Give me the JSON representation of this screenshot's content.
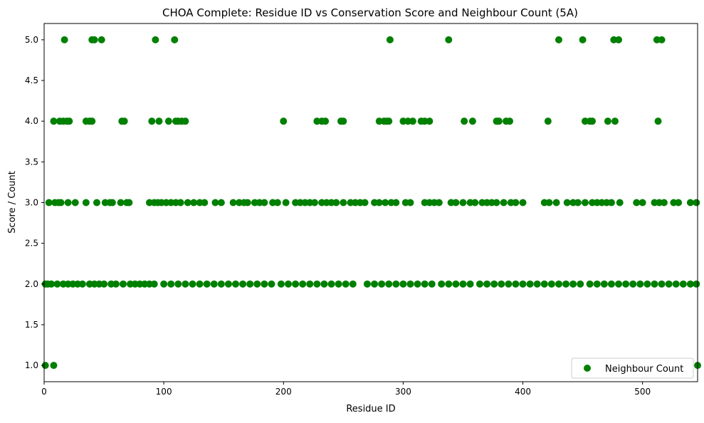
{
  "chart_data": {
    "type": "scatter",
    "title": "CHOA Complete: Residue ID vs Conservation Score and Neighbour Count (5A)",
    "xlabel": "Residue ID",
    "ylabel": "Score / Count",
    "xlim": [
      0,
      546
    ],
    "ylim": [
      0.8,
      5.2
    ],
    "x_ticks": [
      0,
      100,
      200,
      300,
      400,
      500
    ],
    "x_tick_labels": [
      "0",
      "100",
      "200",
      "300",
      "400",
      "500"
    ],
    "y_ticks": [
      1.0,
      1.5,
      2.0,
      2.5,
      3.0,
      3.5,
      4.0,
      4.5,
      5.0
    ],
    "y_tick_labels": [
      "1.0",
      "1.5",
      "2.0",
      "2.5",
      "3.0",
      "3.5",
      "4.0",
      "4.5",
      "5.0"
    ],
    "grid": false,
    "legend_position": "bottom-right",
    "series": [
      {
        "name": "Neighbour Count",
        "color": "#008000",
        "points": [
          [
            1,
            1
          ],
          [
            8,
            1
          ],
          [
            546,
            1
          ],
          [
            17,
            5
          ],
          [
            40,
            5
          ],
          [
            42,
            5
          ],
          [
            48,
            5
          ],
          [
            93,
            5
          ],
          [
            109,
            5
          ],
          [
            289,
            5
          ],
          [
            338,
            5
          ],
          [
            430,
            5
          ],
          [
            450,
            5
          ],
          [
            476,
            5
          ],
          [
            480,
            5
          ],
          [
            512,
            5
          ],
          [
            516,
            5
          ],
          [
            8,
            4
          ],
          [
            13,
            4
          ],
          [
            16,
            4
          ],
          [
            19,
            4
          ],
          [
            21,
            4
          ],
          [
            35,
            4
          ],
          [
            38,
            4
          ],
          [
            40,
            4
          ],
          [
            65,
            4
          ],
          [
            67,
            4
          ],
          [
            90,
            4
          ],
          [
            96,
            4
          ],
          [
            104,
            4
          ],
          [
            110,
            4
          ],
          [
            112,
            4
          ],
          [
            115,
            4
          ],
          [
            118,
            4
          ],
          [
            200,
            4
          ],
          [
            228,
            4
          ],
          [
            232,
            4
          ],
          [
            235,
            4
          ],
          [
            248,
            4
          ],
          [
            250,
            4
          ],
          [
            280,
            4
          ],
          [
            284,
            4
          ],
          [
            286,
            4
          ],
          [
            288,
            4
          ],
          [
            300,
            4
          ],
          [
            304,
            4
          ],
          [
            308,
            4
          ],
          [
            315,
            4
          ],
          [
            318,
            4
          ],
          [
            322,
            4
          ],
          [
            351,
            4
          ],
          [
            358,
            4
          ],
          [
            378,
            4
          ],
          [
            380,
            4
          ],
          [
            386,
            4
          ],
          [
            389,
            4
          ],
          [
            421,
            4
          ],
          [
            452,
            4
          ],
          [
            456,
            4
          ],
          [
            458,
            4
          ],
          [
            471,
            4
          ],
          [
            477,
            4
          ],
          [
            513,
            4
          ],
          [
            4,
            3
          ],
          [
            9,
            3
          ],
          [
            12,
            3
          ],
          [
            14,
            3
          ],
          [
            20,
            3
          ],
          [
            26,
            3
          ],
          [
            35,
            3
          ],
          [
            44,
            3
          ],
          [
            51,
            3
          ],
          [
            55,
            3
          ],
          [
            57,
            3
          ],
          [
            64,
            3
          ],
          [
            69,
            3
          ],
          [
            71,
            3
          ],
          [
            88,
            3
          ],
          [
            92,
            3
          ],
          [
            95,
            3
          ],
          [
            98,
            3
          ],
          [
            102,
            3
          ],
          [
            106,
            3
          ],
          [
            110,
            3
          ],
          [
            114,
            3
          ],
          [
            120,
            3
          ],
          [
            125,
            3
          ],
          [
            130,
            3
          ],
          [
            134,
            3
          ],
          [
            143,
            3
          ],
          [
            148,
            3
          ],
          [
            158,
            3
          ],
          [
            163,
            3
          ],
          [
            167,
            3
          ],
          [
            170,
            3
          ],
          [
            176,
            3
          ],
          [
            180,
            3
          ],
          [
            184,
            3
          ],
          [
            191,
            3
          ],
          [
            195,
            3
          ],
          [
            202,
            3
          ],
          [
            210,
            3
          ],
          [
            214,
            3
          ],
          [
            218,
            3
          ],
          [
            222,
            3
          ],
          [
            226,
            3
          ],
          [
            232,
            3
          ],
          [
            236,
            3
          ],
          [
            240,
            3
          ],
          [
            244,
            3
          ],
          [
            250,
            3
          ],
          [
            256,
            3
          ],
          [
            260,
            3
          ],
          [
            264,
            3
          ],
          [
            268,
            3
          ],
          [
            276,
            3
          ],
          [
            280,
            3
          ],
          [
            285,
            3
          ],
          [
            290,
            3
          ],
          [
            294,
            3
          ],
          [
            302,
            3
          ],
          [
            306,
            3
          ],
          [
            318,
            3
          ],
          [
            322,
            3
          ],
          [
            326,
            3
          ],
          [
            330,
            3
          ],
          [
            340,
            3
          ],
          [
            344,
            3
          ],
          [
            350,
            3
          ],
          [
            356,
            3
          ],
          [
            360,
            3
          ],
          [
            366,
            3
          ],
          [
            370,
            3
          ],
          [
            374,
            3
          ],
          [
            378,
            3
          ],
          [
            384,
            3
          ],
          [
            390,
            3
          ],
          [
            394,
            3
          ],
          [
            400,
            3
          ],
          [
            418,
            3
          ],
          [
            422,
            3
          ],
          [
            428,
            3
          ],
          [
            437,
            3
          ],
          [
            442,
            3
          ],
          [
            446,
            3
          ],
          [
            452,
            3
          ],
          [
            458,
            3
          ],
          [
            462,
            3
          ],
          [
            466,
            3
          ],
          [
            470,
            3
          ],
          [
            474,
            3
          ],
          [
            481,
            3
          ],
          [
            495,
            3
          ],
          [
            500,
            3
          ],
          [
            510,
            3
          ],
          [
            514,
            3
          ],
          [
            518,
            3
          ],
          [
            526,
            3
          ],
          [
            530,
            3
          ],
          [
            540,
            3
          ],
          [
            545,
            3
          ],
          [
            1,
            2
          ],
          [
            3,
            2
          ],
          [
            6,
            2
          ],
          [
            11,
            2
          ],
          [
            16,
            2
          ],
          [
            20,
            2
          ],
          [
            24,
            2
          ],
          [
            28,
            2
          ],
          [
            32,
            2
          ],
          [
            38,
            2
          ],
          [
            42,
            2
          ],
          [
            46,
            2
          ],
          [
            50,
            2
          ],
          [
            56,
            2
          ],
          [
            60,
            2
          ],
          [
            66,
            2
          ],
          [
            72,
            2
          ],
          [
            76,
            2
          ],
          [
            80,
            2
          ],
          [
            84,
            2
          ],
          [
            88,
            2
          ],
          [
            92,
            2
          ],
          [
            100,
            2
          ],
          [
            106,
            2
          ],
          [
            112,
            2
          ],
          [
            118,
            2
          ],
          [
            124,
            2
          ],
          [
            130,
            2
          ],
          [
            136,
            2
          ],
          [
            142,
            2
          ],
          [
            148,
            2
          ],
          [
            154,
            2
          ],
          [
            160,
            2
          ],
          [
            166,
            2
          ],
          [
            172,
            2
          ],
          [
            178,
            2
          ],
          [
            184,
            2
          ],
          [
            190,
            2
          ],
          [
            198,
            2
          ],
          [
            204,
            2
          ],
          [
            210,
            2
          ],
          [
            216,
            2
          ],
          [
            222,
            2
          ],
          [
            228,
            2
          ],
          [
            234,
            2
          ],
          [
            240,
            2
          ],
          [
            246,
            2
          ],
          [
            252,
            2
          ],
          [
            258,
            2
          ],
          [
            270,
            2
          ],
          [
            276,
            2
          ],
          [
            282,
            2
          ],
          [
            288,
            2
          ],
          [
            294,
            2
          ],
          [
            300,
            2
          ],
          [
            306,
            2
          ],
          [
            312,
            2
          ],
          [
            318,
            2
          ],
          [
            324,
            2
          ],
          [
            332,
            2
          ],
          [
            338,
            2
          ],
          [
            344,
            2
          ],
          [
            350,
            2
          ],
          [
            356,
            2
          ],
          [
            364,
            2
          ],
          [
            370,
            2
          ],
          [
            376,
            2
          ],
          [
            382,
            2
          ],
          [
            388,
            2
          ],
          [
            394,
            2
          ],
          [
            400,
            2
          ],
          [
            406,
            2
          ],
          [
            412,
            2
          ],
          [
            418,
            2
          ],
          [
            424,
            2
          ],
          [
            430,
            2
          ],
          [
            436,
            2
          ],
          [
            442,
            2
          ],
          [
            448,
            2
          ],
          [
            456,
            2
          ],
          [
            462,
            2
          ],
          [
            468,
            2
          ],
          [
            474,
            2
          ],
          [
            480,
            2
          ],
          [
            486,
            2
          ],
          [
            492,
            2
          ],
          [
            498,
            2
          ],
          [
            504,
            2
          ],
          [
            510,
            2
          ],
          [
            516,
            2
          ],
          [
            522,
            2
          ],
          [
            528,
            2
          ],
          [
            534,
            2
          ],
          [
            540,
            2
          ],
          [
            545,
            2
          ]
        ]
      }
    ]
  }
}
